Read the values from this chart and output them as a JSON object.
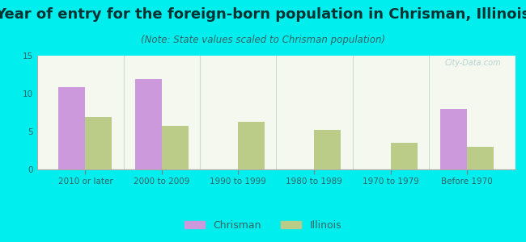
{
  "title": "Year of entry for the foreign-born population in Chrisman, Illinois",
  "subtitle": "(Note: State values scaled to Chrisman population)",
  "categories": [
    "2010 or later",
    "2000 to 2009",
    "1990 to 1999",
    "1980 to 1989",
    "1970 to 1979",
    "Before 1970"
  ],
  "chrisman_values": [
    10.8,
    11.9,
    0,
    0,
    0,
    8.0
  ],
  "illinois_values": [
    6.9,
    5.7,
    6.3,
    5.2,
    3.5,
    3.0
  ],
  "chrisman_color": "#cc99dd",
  "illinois_color": "#bbcc88",
  "background_outer": "#00eeee",
  "background_inner_top": "#f5f8ee",
  "background_inner_bottom": "#e8f0dc",
  "ylim": [
    0,
    15
  ],
  "yticks": [
    0,
    5,
    10,
    15
  ],
  "bar_width": 0.35,
  "title_fontsize": 13,
  "subtitle_fontsize": 8.5,
  "legend_fontsize": 9,
  "tick_fontsize": 7.5,
  "title_color": "#003333",
  "subtitle_color": "#336666",
  "tick_color": "#336666",
  "watermark_text": "City-Data.com"
}
